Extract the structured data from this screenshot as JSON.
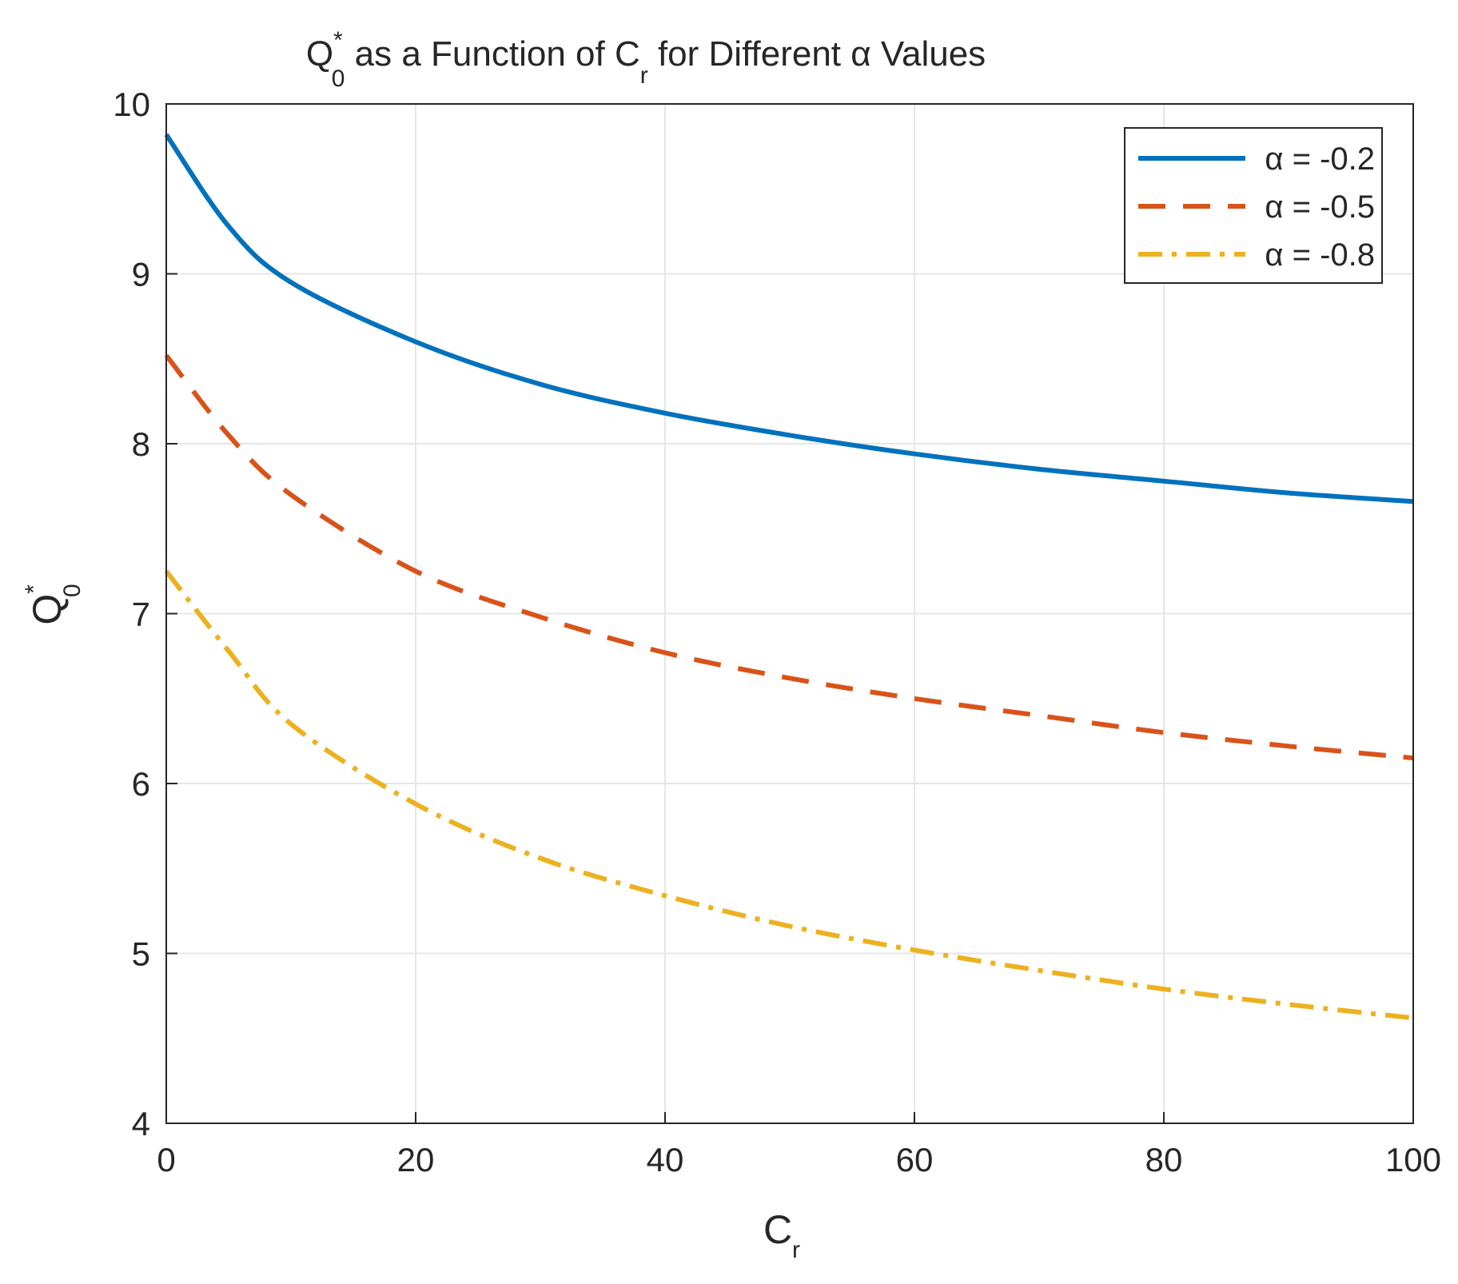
{
  "chart_data": {
    "type": "line",
    "title": {
      "main": "Q",
      "sup": "*",
      "sub": "0",
      "mid": " as a Function of C",
      "sub2": "r",
      "end": " for Different α Values"
    },
    "xlabel": {
      "main": "C",
      "sub": "r"
    },
    "ylabel": {
      "main": "Q",
      "sup": "*",
      "sub": "0"
    },
    "xlim": [
      0,
      100
    ],
    "ylim": [
      4,
      10
    ],
    "xticks": [
      0,
      20,
      40,
      60,
      80,
      100
    ],
    "yticks": [
      4,
      5,
      6,
      7,
      8,
      9,
      10
    ],
    "xtick_labels": [
      "0",
      "20",
      "40",
      "60",
      "80",
      "100"
    ],
    "ytick_labels": [
      "4",
      "5",
      "6",
      "7",
      "8",
      "9",
      "10"
    ],
    "grid": true,
    "legend_position": "top-right",
    "x": [
      0,
      5,
      10,
      20,
      30,
      40,
      50,
      60,
      70,
      80,
      90,
      100
    ],
    "series": [
      {
        "name": "α = -0.2",
        "color": "#0072BD",
        "style": "solid",
        "values": [
          9.82,
          9.28,
          8.95,
          8.6,
          8.35,
          8.18,
          8.05,
          7.94,
          7.85,
          7.78,
          7.71,
          7.66
        ]
      },
      {
        "name": "α = -0.5",
        "color": "#D95319",
        "style": "dashed",
        "values": [
          8.52,
          8.05,
          7.7,
          7.25,
          6.98,
          6.77,
          6.62,
          6.5,
          6.4,
          6.3,
          6.22,
          6.15
        ]
      },
      {
        "name": "α = -0.8",
        "color": "#EDB120",
        "style": "dashdot",
        "values": [
          7.25,
          6.78,
          6.35,
          5.88,
          5.56,
          5.34,
          5.16,
          5.02,
          4.9,
          4.79,
          4.7,
          4.62
        ]
      }
    ]
  }
}
